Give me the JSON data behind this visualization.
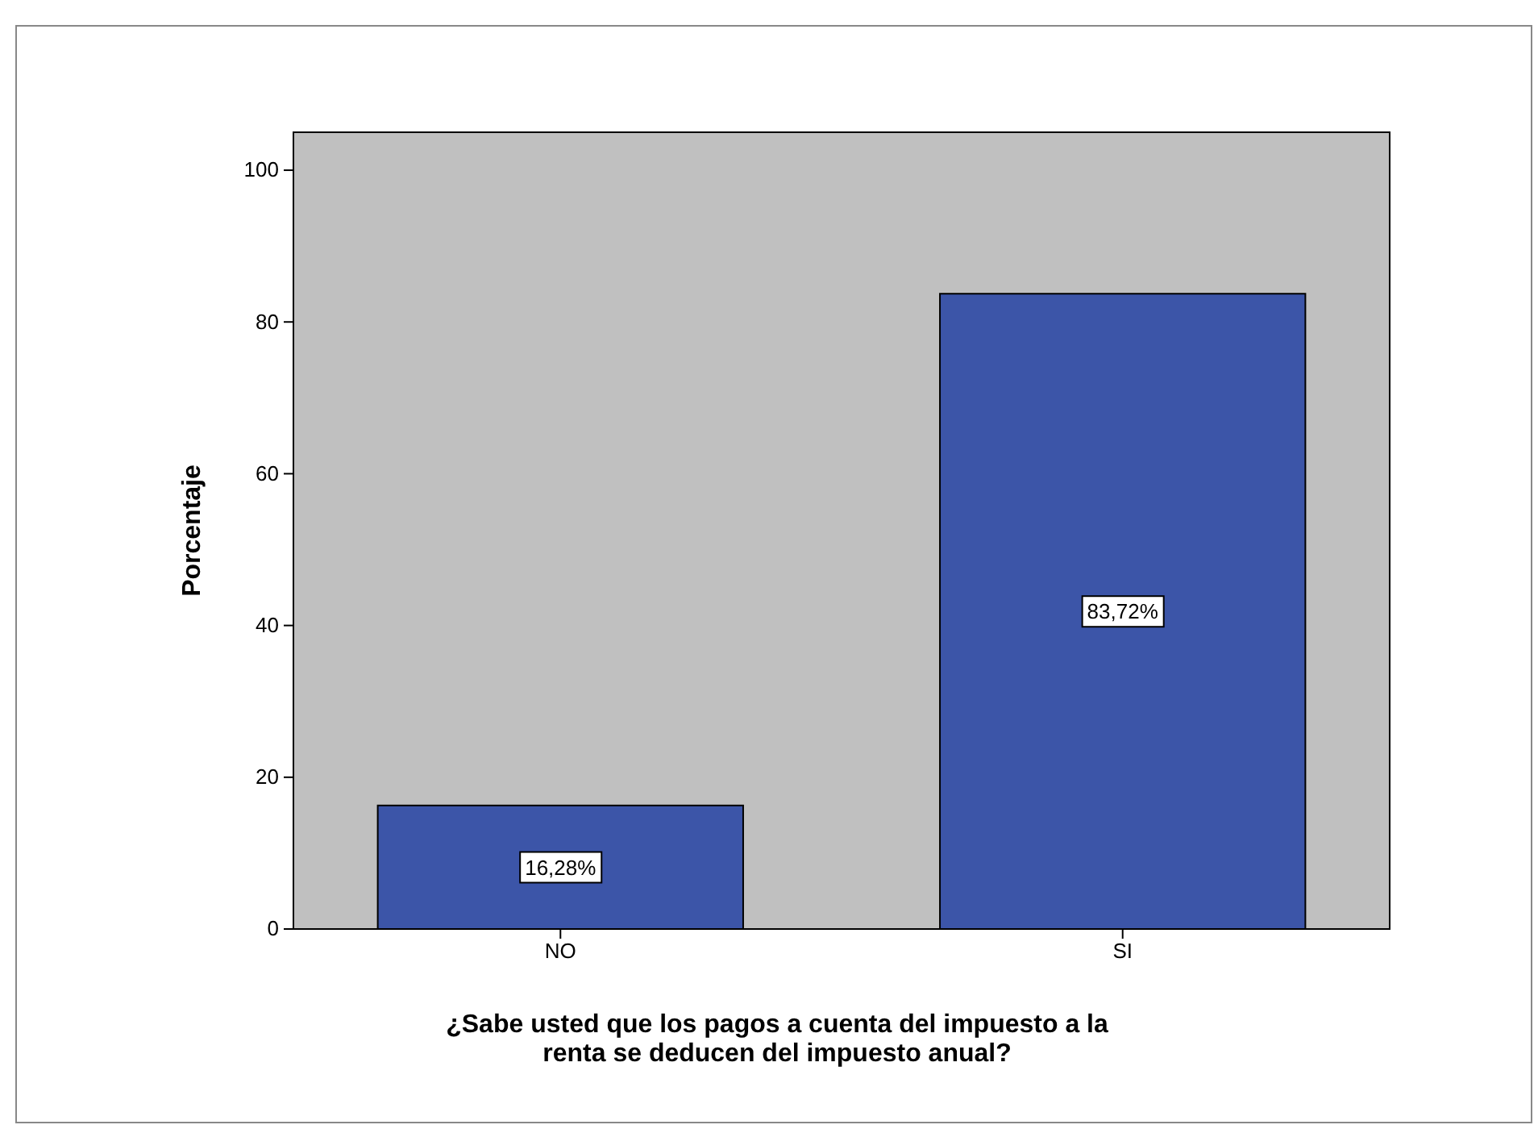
{
  "chart_data": {
    "type": "bar",
    "xlabel": "¿Sabe usted que los pagos a cuenta del impuesto a la renta se deducen del impuesto anual?",
    "ylabel": "Porcentaje",
    "categories": [
      "NO",
      "SI"
    ],
    "values": [
      16.28,
      83.72
    ],
    "value_labels": [
      "16,28%",
      "83,72%"
    ],
    "color": "#3c55a8",
    "ylim": [
      0,
      105
    ],
    "yticks": [
      0,
      20,
      40,
      60,
      80,
      100
    ]
  }
}
